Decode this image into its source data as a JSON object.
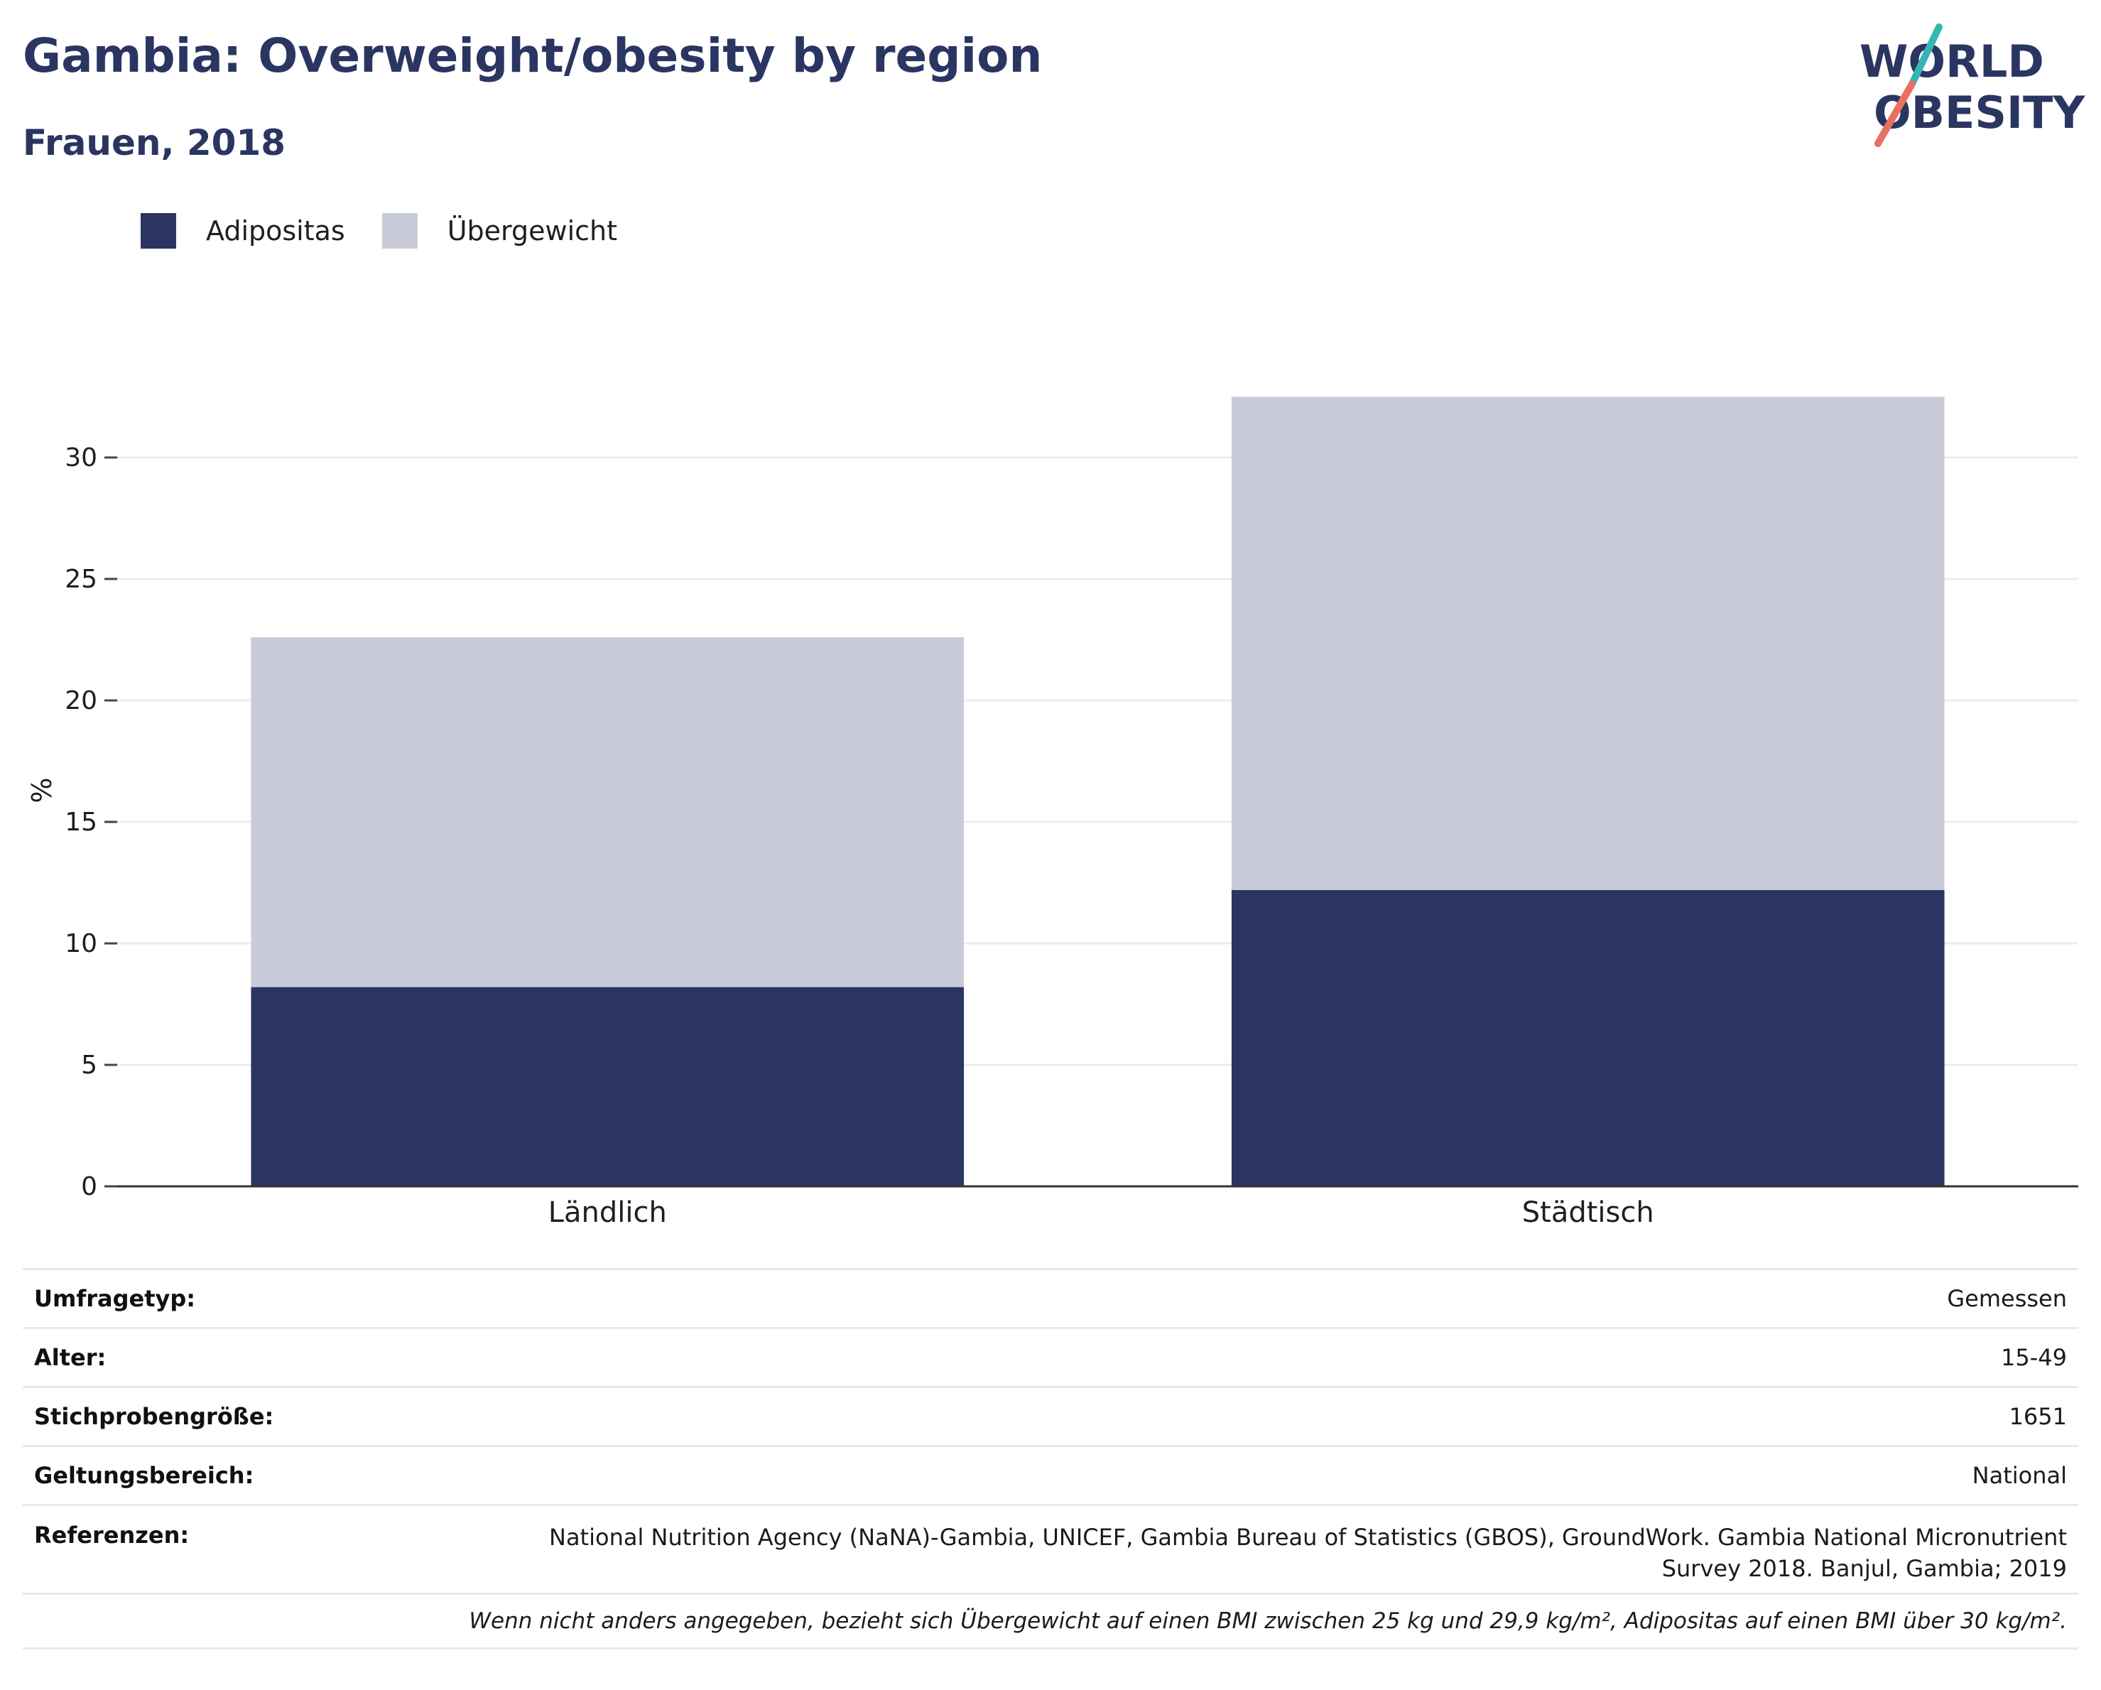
{
  "header": {
    "title": "Gambia: Overweight/obesity by region",
    "subtitle": "Frauen, 2018"
  },
  "logo": {
    "line1": "WORLD",
    "line2": "OBESITY",
    "accent_teal": "#35b6b4",
    "accent_coral": "#e8705f",
    "text_color": "#2a3562"
  },
  "legend": [
    {
      "label": "Adipositas",
      "color": "#2a3562"
    },
    {
      "label": "Übergewicht",
      "color": "#c9ccd8"
    }
  ],
  "chart_data": {
    "type": "bar",
    "stacked": true,
    "categories": [
      "Ländlich",
      "Städtisch"
    ],
    "series": [
      {
        "name": "Adipositas",
        "color": "#2a3562",
        "values": [
          8.2,
          12.2
        ]
      },
      {
        "name": "Übergewicht",
        "color": "#c9ccd8",
        "values": [
          14.4,
          20.3
        ]
      }
    ],
    "title": "Gambia: Overweight/obesity by region",
    "subtitle": "Frauen, 2018",
    "xlabel": "",
    "ylabel": "%",
    "ylim": [
      0,
      32.6
    ],
    "yticks": [
      0,
      5,
      10,
      15,
      20,
      25,
      30
    ],
    "grid": true,
    "legend_position": "top-left"
  },
  "metadata": [
    {
      "key": "Umfragetyp:",
      "value": "Gemessen"
    },
    {
      "key": "Alter:",
      "value": "15-49"
    },
    {
      "key": "Stichprobengröße:",
      "value": "1651"
    },
    {
      "key": "Geltungsbereich:",
      "value": "National"
    },
    {
      "key": "Referenzen:",
      "value": "National Nutrition Agency (NaNA)-Gambia, UNICEF, Gambia Bureau of Statistics (GBOS), GroundWork. Gambia National Micronutrient Survey 2018. Banjul, Gambia; 2019"
    }
  ],
  "footnote": "Wenn nicht anders angegeben, bezieht sich Übergewicht auf einen BMI zwischen 25 kg und 29,9 kg/m², Adipositas auf einen BMI über 30 kg/m²."
}
